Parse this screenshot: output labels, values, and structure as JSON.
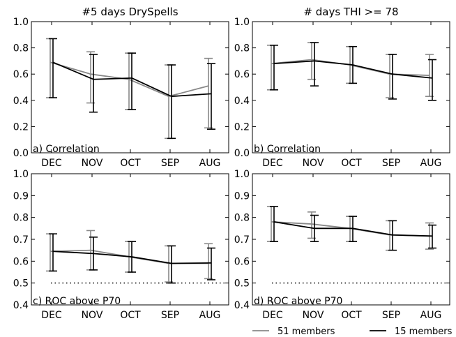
{
  "figure": {
    "legend": {
      "placement": "bottom-right",
      "entries": [
        "51 members",
        "15 members"
      ]
    }
  },
  "colors": {
    "members51": "#888888",
    "members15": "#000000"
  },
  "chart_data": [
    {
      "type": "line",
      "title": "#5 days DrySpells",
      "annotation": "a) Correlation",
      "categories": [
        "DEC",
        "NOV",
        "OCT",
        "SEP",
        "AUG"
      ],
      "ylim": [
        0.0,
        1.0
      ],
      "yticks": [
        "0.0",
        "0.2",
        "0.4",
        "0.6",
        "0.8",
        "1.0"
      ],
      "grid": false,
      "series": [
        {
          "name": "51 members",
          "values": [
            0.69,
            0.6,
            0.56,
            0.43,
            0.51
          ],
          "lower": [
            0.42,
            0.38,
            0.33,
            0.11,
            0.19
          ],
          "upper": [
            0.87,
            0.77,
            0.76,
            0.67,
            0.72
          ]
        },
        {
          "name": "15 members",
          "values": [
            0.69,
            0.56,
            0.57,
            0.43,
            0.45
          ],
          "lower": [
            0.42,
            0.31,
            0.33,
            0.11,
            0.18
          ],
          "upper": [
            0.87,
            0.75,
            0.76,
            0.67,
            0.68
          ]
        }
      ]
    },
    {
      "type": "line",
      "title": "# days THI >= 78",
      "annotation": "b) Correlation",
      "categories": [
        "DEC",
        "NOV",
        "OCT",
        "SEP",
        "AUG"
      ],
      "ylim": [
        0.0,
        1.0
      ],
      "yticks": [
        "0.0",
        "0.2",
        "0.4",
        "0.6",
        "0.8",
        "1.0"
      ],
      "grid": false,
      "series": [
        {
          "name": "51 members",
          "values": [
            0.68,
            0.71,
            0.67,
            0.6,
            0.59
          ],
          "lower": [
            0.48,
            0.56,
            0.53,
            0.42,
            0.43
          ],
          "upper": [
            0.82,
            0.84,
            0.81,
            0.75,
            0.75
          ]
        },
        {
          "name": "15 members",
          "values": [
            0.68,
            0.7,
            0.67,
            0.6,
            0.57
          ],
          "lower": [
            0.48,
            0.51,
            0.53,
            0.41,
            0.4
          ],
          "upper": [
            0.82,
            0.84,
            0.81,
            0.75,
            0.71
          ]
        }
      ]
    },
    {
      "type": "line",
      "annotation": "c) ROC above P70",
      "categories": [
        "DEC",
        "NOV",
        "OCT",
        "SEP",
        "AUG"
      ],
      "ylim": [
        0.4,
        1.0
      ],
      "yticks": [
        "0.4",
        "0.5",
        "0.6",
        "0.7",
        "0.8",
        "0.9",
        "1.0"
      ],
      "reference_line": 0.5,
      "grid": false,
      "series": [
        {
          "name": "51 members",
          "values": [
            0.645,
            0.65,
            0.62,
            0.59,
            0.59
          ],
          "lower": [
            0.555,
            0.56,
            0.55,
            0.505,
            0.52
          ],
          "upper": [
            0.725,
            0.74,
            0.69,
            0.67,
            0.68
          ]
        },
        {
          "name": "15 members",
          "values": [
            0.645,
            0.635,
            0.62,
            0.59,
            0.592
          ],
          "lower": [
            0.555,
            0.56,
            0.55,
            0.5,
            0.515
          ],
          "upper": [
            0.725,
            0.71,
            0.69,
            0.67,
            0.66
          ]
        }
      ]
    },
    {
      "type": "line",
      "annotation": "d) ROC above P70",
      "categories": [
        "DEC",
        "NOV",
        "OCT",
        "SEP",
        "AUG"
      ],
      "ylim": [
        0.4,
        1.0
      ],
      "yticks": [
        "0.4",
        "0.5",
        "0.6",
        "0.7",
        "0.8",
        "0.9",
        "1.0"
      ],
      "reference_line": 0.5,
      "grid": false,
      "series": [
        {
          "name": "51 members",
          "values": [
            0.78,
            0.77,
            0.75,
            0.72,
            0.715
          ],
          "lower": [
            0.69,
            0.705,
            0.69,
            0.65,
            0.655
          ],
          "upper": [
            0.85,
            0.825,
            0.805,
            0.785,
            0.775
          ]
        },
        {
          "name": "15 members",
          "values": [
            0.78,
            0.75,
            0.75,
            0.72,
            0.715
          ],
          "lower": [
            0.69,
            0.69,
            0.69,
            0.65,
            0.66
          ],
          "upper": [
            0.85,
            0.81,
            0.805,
            0.785,
            0.765
          ]
        }
      ]
    }
  ]
}
